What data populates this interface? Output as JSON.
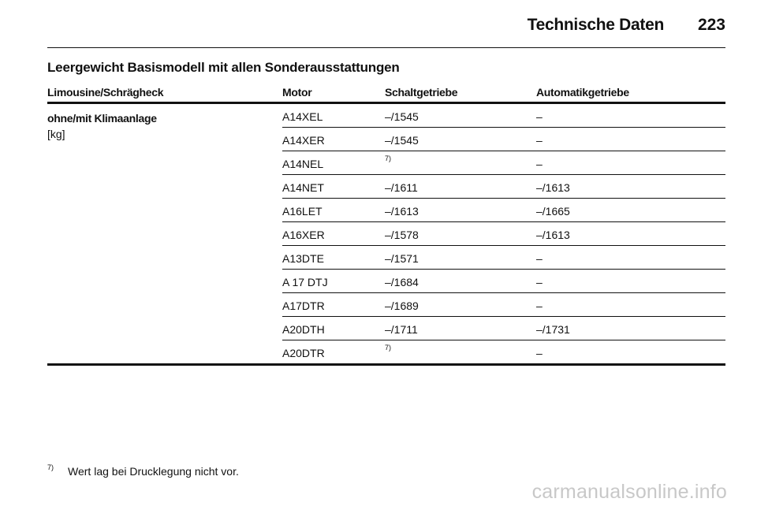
{
  "header": {
    "title": "Technische Daten",
    "page_number": "223"
  },
  "section": {
    "title": "Leergewicht Basismodell mit allen Sonderausstattungen"
  },
  "table": {
    "columns": [
      "Limousine/Schrägheck",
      "Motor",
      "Schaltgetriebe",
      "Automatikgetriebe"
    ],
    "row_label": "ohne/mit Klimaanlage",
    "row_unit": "[kg]",
    "rows": [
      {
        "motor": "A14XEL",
        "manual": "–/1545",
        "automatic": "–"
      },
      {
        "motor": "A14XER",
        "manual": "–/1545",
        "automatic": "–"
      },
      {
        "motor": "A14NEL",
        "manual": "7)",
        "automatic": "–"
      },
      {
        "motor": "A14NET",
        "manual": "–/1611",
        "automatic": "–/1613"
      },
      {
        "motor": "A16LET",
        "manual": "–/1613",
        "automatic": "–/1665"
      },
      {
        "motor": "A16XER",
        "manual": "–/1578",
        "automatic": "–/1613"
      },
      {
        "motor": "A13DTE",
        "manual": "–/1571",
        "automatic": "–"
      },
      {
        "motor": "A 17 DTJ",
        "manual": "–/1684",
        "automatic": "–"
      },
      {
        "motor": "A17DTR",
        "manual": "–/1689",
        "automatic": "–"
      },
      {
        "motor": "A20DTH",
        "manual": "–/1711",
        "automatic": "–/1731"
      },
      {
        "motor": "A20DTR",
        "manual": "7)",
        "automatic": "–"
      }
    ]
  },
  "footnote": {
    "marker": "7)",
    "text": "Wert lag bei Drucklegung nicht vor."
  },
  "watermark": "carmanualsonline.info"
}
